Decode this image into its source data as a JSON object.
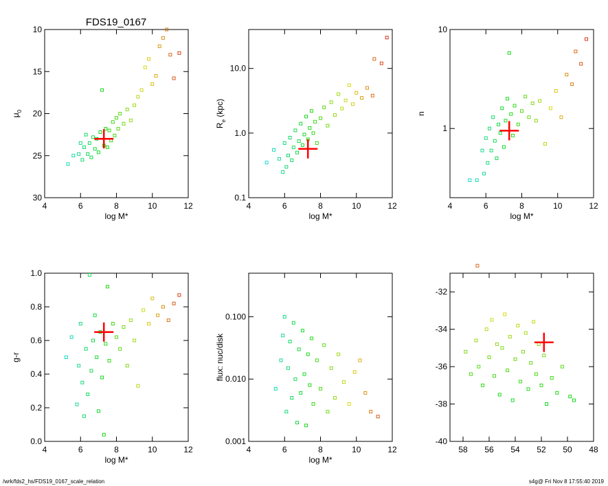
{
  "title": "FDS19_0167",
  "footer": {
    "left": "/wrk/fds2_hs/FDS19_0167_scale_relation",
    "right": "s4g@  Fri Nov  8 17:55:40 2019"
  },
  "chart_data": [
    {
      "id": "mu0",
      "type": "scatter",
      "title": "FDS19_0167",
      "xlabel": "log M*",
      "ylabel": "μ₀",
      "ylabel_main": "μ",
      "ylabel_sub": "0",
      "xlim": [
        4,
        12
      ],
      "ylim": [
        30,
        10
      ],
      "xscale": "linear",
      "yscale": "linear",
      "xticks": [
        4,
        6,
        8,
        10,
        12
      ],
      "xtick_labels": [
        "4",
        "6",
        "8",
        "10",
        "12"
      ],
      "yticks": [
        10,
        15,
        20,
        25,
        30
      ],
      "ytick_labels": [
        "10",
        "15",
        "20",
        "25",
        "30"
      ],
      "points": [
        {
          "x": 5.3,
          "y": 26.0
        },
        {
          "x": 5.6,
          "y": 25.0
        },
        {
          "x": 5.9,
          "y": 24.8
        },
        {
          "x": 6.0,
          "y": 23.5
        },
        {
          "x": 6.1,
          "y": 25.5
        },
        {
          "x": 6.2,
          "y": 24.0
        },
        {
          "x": 6.3,
          "y": 22.5
        },
        {
          "x": 6.4,
          "y": 24.8
        },
        {
          "x": 6.5,
          "y": 23.5
        },
        {
          "x": 6.6,
          "y": 25.2
        },
        {
          "x": 6.7,
          "y": 22.8
        },
        {
          "x": 6.8,
          "y": 24.2
        },
        {
          "x": 6.9,
          "y": 23.0
        },
        {
          "x": 7.0,
          "y": 24.6
        },
        {
          "x": 7.1,
          "y": 22.2
        },
        {
          "x": 7.2,
          "y": 17.2
        },
        {
          "x": 7.3,
          "y": 23.8
        },
        {
          "x": 7.4,
          "y": 21.8
        },
        {
          "x": 7.5,
          "y": 24.0
        },
        {
          "x": 7.6,
          "y": 22.0
        },
        {
          "x": 7.7,
          "y": 23.2
        },
        {
          "x": 7.8,
          "y": 21.0
        },
        {
          "x": 7.9,
          "y": 22.6
        },
        {
          "x": 8.0,
          "y": 20.5
        },
        {
          "x": 8.1,
          "y": 21.8
        },
        {
          "x": 8.2,
          "y": 20.0
        },
        {
          "x": 8.4,
          "y": 21.2
        },
        {
          "x": 8.6,
          "y": 19.5
        },
        {
          "x": 8.8,
          "y": 20.8
        },
        {
          "x": 9.0,
          "y": 19.0
        },
        {
          "x": 9.2,
          "y": 18.0
        },
        {
          "x": 9.4,
          "y": 17.2
        },
        {
          "x": 9.6,
          "y": 14.5
        },
        {
          "x": 9.8,
          "y": 13.5
        },
        {
          "x": 10.0,
          "y": 16.5
        },
        {
          "x": 10.2,
          "y": 15.5
        },
        {
          "x": 10.4,
          "y": 12.0
        },
        {
          "x": 10.6,
          "y": 11.0
        },
        {
          "x": 10.8,
          "y": 10.0
        },
        {
          "x": 11.0,
          "y": 13.0
        },
        {
          "x": 11.2,
          "y": 15.8
        },
        {
          "x": 11.5,
          "y": 12.8
        }
      ],
      "marker": {
        "x": 7.3,
        "y": 23.0
      }
    },
    {
      "id": "re",
      "type": "scatter",
      "xlabel": "log M*",
      "ylabel": "Rₑ (kpc)",
      "ylabel_main": "R",
      "ylabel_sub": "e",
      "ylabel_tail": " (kpc)",
      "xlim": [
        4,
        12
      ],
      "ylim": [
        0.1,
        40
      ],
      "xscale": "linear",
      "yscale": "log",
      "xticks": [
        4,
        6,
        8,
        10,
        12
      ],
      "xtick_labels": [
        "4",
        "6",
        "8",
        "10",
        "12"
      ],
      "yticks": [
        0.1,
        1.0,
        10.0
      ],
      "ytick_labels": [
        "0.1",
        "1.0",
        "10.0"
      ],
      "points": [
        {
          "x": 5.0,
          "y": 0.35
        },
        {
          "x": 5.4,
          "y": 0.55
        },
        {
          "x": 5.7,
          "y": 0.4
        },
        {
          "x": 5.9,
          "y": 0.25
        },
        {
          "x": 6.0,
          "y": 0.7
        },
        {
          "x": 6.1,
          "y": 0.3
        },
        {
          "x": 6.2,
          "y": 0.45
        },
        {
          "x": 6.3,
          "y": 0.85
        },
        {
          "x": 6.4,
          "y": 0.38
        },
        {
          "x": 6.5,
          "y": 0.6
        },
        {
          "x": 6.6,
          "y": 1.1
        },
        {
          "x": 6.7,
          "y": 0.5
        },
        {
          "x": 6.8,
          "y": 0.75
        },
        {
          "x": 6.9,
          "y": 1.4
        },
        {
          "x": 7.0,
          "y": 0.65
        },
        {
          "x": 7.1,
          "y": 0.95
        },
        {
          "x": 7.2,
          "y": 1.8
        },
        {
          "x": 7.3,
          "y": 0.8
        },
        {
          "x": 7.4,
          "y": 1.2
        },
        {
          "x": 7.5,
          "y": 2.2
        },
        {
          "x": 7.6,
          "y": 1.0
        },
        {
          "x": 7.7,
          "y": 1.5
        },
        {
          "x": 7.8,
          "y": 0.7
        },
        {
          "x": 8.0,
          "y": 1.7
        },
        {
          "x": 8.2,
          "y": 2.5
        },
        {
          "x": 8.4,
          "y": 1.3
        },
        {
          "x": 8.6,
          "y": 3.0
        },
        {
          "x": 8.8,
          "y": 1.9
        },
        {
          "x": 9.0,
          "y": 4.0
        },
        {
          "x": 9.2,
          "y": 2.4
        },
        {
          "x": 9.4,
          "y": 3.2
        },
        {
          "x": 9.6,
          "y": 5.5
        },
        {
          "x": 9.8,
          "y": 2.8
        },
        {
          "x": 10.0,
          "y": 4.2
        },
        {
          "x": 10.3,
          "y": 3.5
        },
        {
          "x": 10.6,
          "y": 5.0
        },
        {
          "x": 10.9,
          "y": 3.8
        },
        {
          "x": 11.0,
          "y": 14.0
        },
        {
          "x": 11.4,
          "y": 12.0
        },
        {
          "x": 11.7,
          "y": 30.0
        }
      ],
      "marker": {
        "x": 7.3,
        "y": 0.57
      }
    },
    {
      "id": "n",
      "type": "scatter",
      "xlabel": "log M*",
      "ylabel": "n",
      "ylabel_main": "n",
      "xlim": [
        4,
        12
      ],
      "ylim": [
        0.2,
        10
      ],
      "xscale": "linear",
      "yscale": "log",
      "xticks": [
        4,
        6,
        8,
        10,
        12
      ],
      "xtick_labels": [
        "4",
        "6",
        "8",
        "10",
        "12"
      ],
      "yticks": [
        1,
        10
      ],
      "ytick_labels": [
        "1",
        "10"
      ],
      "points": [
        {
          "x": 5.1,
          "y": 0.3
        },
        {
          "x": 5.5,
          "y": 0.3
        },
        {
          "x": 5.8,
          "y": 0.6
        },
        {
          "x": 5.9,
          "y": 0.35
        },
        {
          "x": 6.0,
          "y": 0.8
        },
        {
          "x": 6.1,
          "y": 0.45
        },
        {
          "x": 6.2,
          "y": 1.0
        },
        {
          "x": 6.3,
          "y": 0.6
        },
        {
          "x": 6.4,
          "y": 1.3
        },
        {
          "x": 6.5,
          "y": 0.75
        },
        {
          "x": 6.6,
          "y": 0.5
        },
        {
          "x": 6.7,
          "y": 1.1
        },
        {
          "x": 6.8,
          "y": 0.9
        },
        {
          "x": 6.9,
          "y": 1.6
        },
        {
          "x": 7.0,
          "y": 0.65
        },
        {
          "x": 7.1,
          "y": 1.2
        },
        {
          "x": 7.2,
          "y": 2.0
        },
        {
          "x": 7.3,
          "y": 5.8
        },
        {
          "x": 7.4,
          "y": 1.4
        },
        {
          "x": 7.5,
          "y": 0.85
        },
        {
          "x": 7.6,
          "y": 1.7
        },
        {
          "x": 7.8,
          "y": 1.1
        },
        {
          "x": 8.0,
          "y": 1.5
        },
        {
          "x": 8.2,
          "y": 2.1
        },
        {
          "x": 8.4,
          "y": 1.3
        },
        {
          "x": 8.6,
          "y": 1.8
        },
        {
          "x": 8.8,
          "y": 1.2
        },
        {
          "x": 9.0,
          "y": 1.9
        },
        {
          "x": 9.3,
          "y": 0.7
        },
        {
          "x": 9.6,
          "y": 1.6
        },
        {
          "x": 9.9,
          "y": 2.4
        },
        {
          "x": 10.2,
          "y": 1.3
        },
        {
          "x": 10.5,
          "y": 3.5
        },
        {
          "x": 10.8,
          "y": 2.8
        },
        {
          "x": 11.0,
          "y": 6.0
        },
        {
          "x": 11.3,
          "y": 4.5
        },
        {
          "x": 11.6,
          "y": 8.0
        }
      ],
      "marker": {
        "x": 7.3,
        "y": 0.95
      }
    },
    {
      "id": "gr",
      "type": "scatter",
      "xlabel": "log M*",
      "ylabel": "g-r",
      "ylabel_main": "g-r",
      "xlim": [
        4,
        12
      ],
      "ylim": [
        0,
        1
      ],
      "xscale": "linear",
      "yscale": "linear",
      "xticks": [
        4,
        6,
        8,
        10,
        12
      ],
      "xtick_labels": [
        "4",
        "6",
        "8",
        "10",
        "12"
      ],
      "yticks": [
        0,
        0.2,
        0.4,
        0.6,
        0.8,
        1.0
      ],
      "ytick_labels": [
        "0.0",
        "0.2",
        "0.4",
        "0.6",
        "0.8",
        "1.0"
      ],
      "points": [
        {
          "x": 5.2,
          "y": 0.5
        },
        {
          "x": 5.5,
          "y": 0.62
        },
        {
          "x": 5.8,
          "y": 0.22
        },
        {
          "x": 5.9,
          "y": 0.45
        },
        {
          "x": 6.0,
          "y": 0.7
        },
        {
          "x": 6.1,
          "y": 0.35
        },
        {
          "x": 6.2,
          "y": 0.15
        },
        {
          "x": 6.3,
          "y": 0.55
        },
        {
          "x": 6.4,
          "y": 0.28
        },
        {
          "x": 6.5,
          "y": 0.99
        },
        {
          "x": 6.6,
          "y": 0.42
        },
        {
          "x": 6.7,
          "y": 0.6
        },
        {
          "x": 6.8,
          "y": 0.75
        },
        {
          "x": 6.9,
          "y": 0.5
        },
        {
          "x": 7.0,
          "y": 0.18
        },
        {
          "x": 7.1,
          "y": 0.65
        },
        {
          "x": 7.2,
          "y": 0.38
        },
        {
          "x": 7.3,
          "y": 0.04
        },
        {
          "x": 7.4,
          "y": 0.58
        },
        {
          "x": 7.5,
          "y": 0.92
        },
        {
          "x": 7.6,
          "y": 0.48
        },
        {
          "x": 7.8,
          "y": 0.7
        },
        {
          "x": 8.0,
          "y": 0.62
        },
        {
          "x": 8.2,
          "y": 0.55
        },
        {
          "x": 8.4,
          "y": 0.68
        },
        {
          "x": 8.6,
          "y": 0.45
        },
        {
          "x": 8.8,
          "y": 0.72
        },
        {
          "x": 9.0,
          "y": 0.6
        },
        {
          "x": 9.2,
          "y": 0.33
        },
        {
          "x": 9.5,
          "y": 0.78
        },
        {
          "x": 9.8,
          "y": 0.7
        },
        {
          "x": 10.0,
          "y": 0.85
        },
        {
          "x": 10.3,
          "y": 0.75
        },
        {
          "x": 10.6,
          "y": 0.8
        },
        {
          "x": 10.9,
          "y": 0.72
        },
        {
          "x": 11.2,
          "y": 0.82
        },
        {
          "x": 11.5,
          "y": 0.87
        }
      ],
      "marker": {
        "x": 7.3,
        "y": 0.65
      }
    },
    {
      "id": "flux",
      "type": "scatter",
      "xlabel": "log M*",
      "ylabel": "flux: nuc/disk",
      "ylabel_main": "flux: nuc/disk",
      "xlim": [
        4,
        12
      ],
      "ylim": [
        0.001,
        0.5
      ],
      "xscale": "linear",
      "yscale": "log",
      "xticks": [
        4,
        6,
        8,
        10,
        12
      ],
      "xtick_labels": [
        "4",
        "6",
        "8",
        "10",
        "12"
      ],
      "yticks": [
        0.001,
        0.01,
        0.1
      ],
      "ytick_labels": [
        "0.001",
        "0.010",
        "0.100"
      ],
      "points": [
        {
          "x": 5.5,
          "y": 0.007
        },
        {
          "x": 5.8,
          "y": 0.02
        },
        {
          "x": 5.9,
          "y": 0.05
        },
        {
          "x": 6.0,
          "y": 0.1
        },
        {
          "x": 6.1,
          "y": 0.003
        },
        {
          "x": 6.2,
          "y": 0.015
        },
        {
          "x": 6.3,
          "y": 0.04
        },
        {
          "x": 6.4,
          "y": 0.005
        },
        {
          "x": 6.5,
          "y": 0.08
        },
        {
          "x": 6.6,
          "y": 0.01
        },
        {
          "x": 6.7,
          "y": 0.002
        },
        {
          "x": 6.8,
          "y": 0.03
        },
        {
          "x": 6.9,
          "y": 0.006
        },
        {
          "x": 7.0,
          "y": 0.06
        },
        {
          "x": 7.1,
          "y": 0.012
        },
        {
          "x": 7.2,
          "y": 0.0018
        },
        {
          "x": 7.3,
          "y": 0.025
        },
        {
          "x": 7.4,
          "y": 0.008
        },
        {
          "x": 7.5,
          "y": 0.045
        },
        {
          "x": 7.6,
          "y": 0.004
        },
        {
          "x": 7.8,
          "y": 0.02
        },
        {
          "x": 8.0,
          "y": 0.007
        },
        {
          "x": 8.2,
          "y": 0.035
        },
        {
          "x": 8.4,
          "y": 0.003
        },
        {
          "x": 8.6,
          "y": 0.015
        },
        {
          "x": 8.8,
          "y": 0.005
        },
        {
          "x": 9.0,
          "y": 0.025
        },
        {
          "x": 9.3,
          "y": 0.009
        },
        {
          "x": 9.6,
          "y": 0.004
        },
        {
          "x": 9.9,
          "y": 0.013
        },
        {
          "x": 10.2,
          "y": 0.02
        },
        {
          "x": 10.5,
          "y": 0.006
        },
        {
          "x": 10.8,
          "y": 0.003
        },
        {
          "x": 11.2,
          "y": 0.0025
        }
      ]
    },
    {
      "id": "mag",
      "type": "scatter",
      "xlabel": "",
      "ylabel": "",
      "xlim": [
        59,
        48
      ],
      "ylim": [
        -40,
        -31
      ],
      "xscale": "linear",
      "yscale": "linear",
      "xticks": [
        58,
        56,
        54,
        52,
        50,
        48
      ],
      "xtick_labels": [
        "58",
        "56",
        "54",
        "52",
        "50",
        "48"
      ],
      "yticks": [
        -40,
        -38,
        -36,
        -34,
        -32
      ],
      "ytick_labels": [
        "-40",
        "-38",
        "-36",
        "-34",
        "-32"
      ],
      "points": [
        {
          "x": 57.8,
          "y": -35.2
        },
        {
          "x": 57.4,
          "y": -36.4
        },
        {
          "x": 57.0,
          "y": -34.6
        },
        {
          "x": 56.8,
          "y": -36.0
        },
        {
          "x": 56.5,
          "y": -37.0
        },
        {
          "x": 56.2,
          "y": -34.0
        },
        {
          "x": 56.0,
          "y": -35.5
        },
        {
          "x": 55.8,
          "y": -33.5
        },
        {
          "x": 55.6,
          "y": -36.5
        },
        {
          "x": 55.4,
          "y": -34.8
        },
        {
          "x": 55.2,
          "y": -37.5
        },
        {
          "x": 55.0,
          "y": -35.0
        },
        {
          "x": 54.8,
          "y": -33.2
        },
        {
          "x": 54.6,
          "y": -36.2
        },
        {
          "x": 54.4,
          "y": -34.4
        },
        {
          "x": 54.2,
          "y": -37.8
        },
        {
          "x": 54.0,
          "y": -35.6
        },
        {
          "x": 53.8,
          "y": -33.8
        },
        {
          "x": 53.6,
          "y": -36.8
        },
        {
          "x": 53.4,
          "y": -35.2
        },
        {
          "x": 53.2,
          "y": -34.2
        },
        {
          "x": 53.0,
          "y": -37.2
        },
        {
          "x": 52.8,
          "y": -35.8
        },
        {
          "x": 52.6,
          "y": -33.6
        },
        {
          "x": 52.4,
          "y": -36.4
        },
        {
          "x": 52.2,
          "y": -34.8
        },
        {
          "x": 52.0,
          "y": -37.0
        },
        {
          "x": 51.8,
          "y": -35.4
        },
        {
          "x": 51.6,
          "y": -38.0
        },
        {
          "x": 51.2,
          "y": -36.6
        },
        {
          "x": 50.8,
          "y": -37.4
        },
        {
          "x": 50.4,
          "y": -36.0
        },
        {
          "x": 49.8,
          "y": -37.6
        },
        {
          "x": 49.5,
          "y": -37.8
        },
        {
          "x": 56.9,
          "y": -30.6
        }
      ],
      "marker": {
        "x": 51.8,
        "y": -34.7
      }
    }
  ]
}
